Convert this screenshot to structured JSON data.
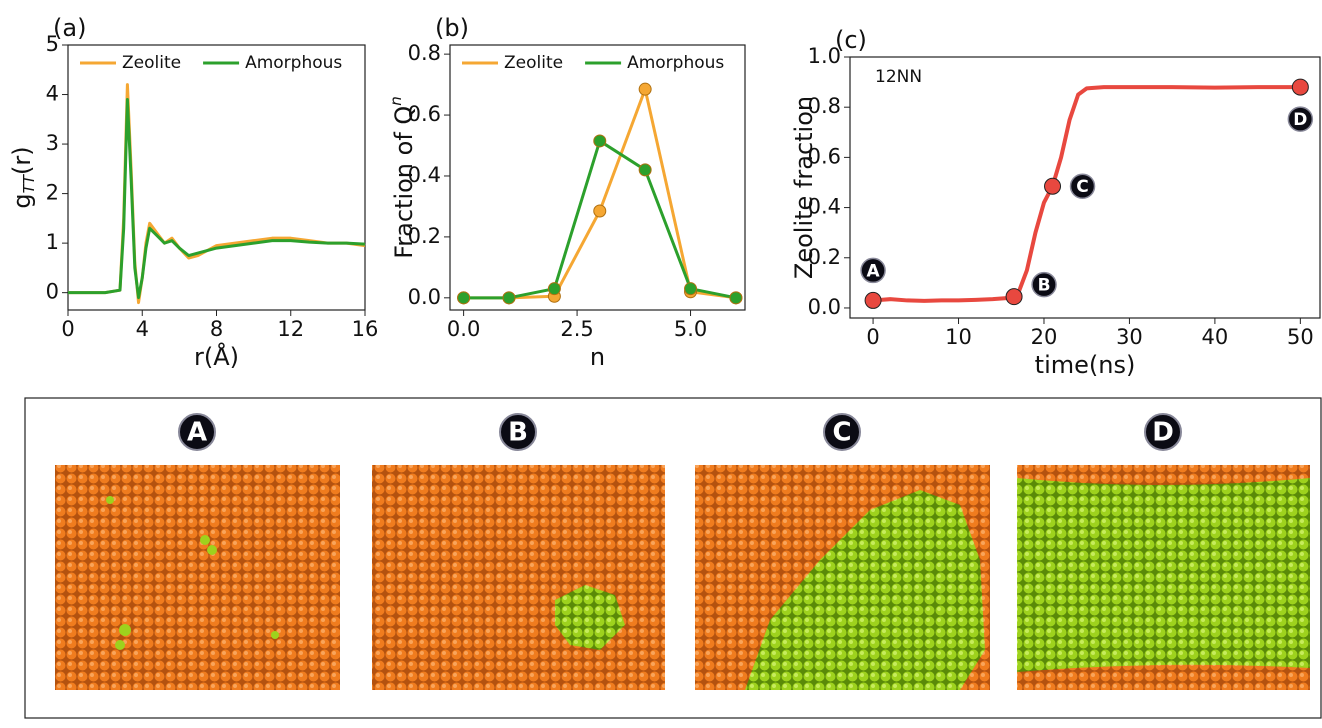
{
  "chart_data": [
    {
      "type": "line",
      "panel_label": "(a)",
      "xlabel": "r(Å)",
      "ylabel": "g",
      "ylabel_sub": "TT",
      "ylabel_end": "(r)",
      "x": [
        0,
        1,
        2,
        2.8,
        3.0,
        3.2,
        3.4,
        3.6,
        3.8,
        4.0,
        4.2,
        4.4,
        4.8,
        5.2,
        5.6,
        6,
        6.5,
        7,
        7.5,
        8,
        9,
        10,
        11,
        12,
        13,
        14,
        15,
        16
      ],
      "series": [
        {
          "name": "Zeolite",
          "color": "#f5a733",
          "values": [
            0,
            0,
            0,
            0.05,
            1.5,
            4.2,
            2.5,
            0.6,
            -0.2,
            0.3,
            1.0,
            1.4,
            1.2,
            1.0,
            1.1,
            0.9,
            0.7,
            0.75,
            0.85,
            0.95,
            1.0,
            1.05,
            1.1,
            1.1,
            1.05,
            1.0,
            1.0,
            0.95
          ]
        },
        {
          "name": "Amorphous",
          "color": "#2ca02c",
          "values": [
            0,
            0,
            0,
            0.05,
            1.3,
            3.9,
            2.3,
            0.5,
            -0.1,
            0.3,
            0.9,
            1.3,
            1.15,
            1.0,
            1.05,
            0.9,
            0.75,
            0.8,
            0.85,
            0.9,
            0.95,
            1.0,
            1.05,
            1.05,
            1.02,
            1.0,
            1.0,
            0.98
          ]
        }
      ],
      "xlim": [
        0,
        16
      ],
      "xticks": [
        0,
        4,
        8,
        12,
        16
      ],
      "ylim": [
        -0.35,
        5
      ],
      "yticks": [
        0,
        1,
        2,
        3,
        4,
        5
      ],
      "legend": "top"
    },
    {
      "type": "line",
      "panel_label": "(b)",
      "xlabel": "n",
      "ylabel": "Fraction of Q",
      "ylabel_sup": "n",
      "x": [
        0,
        1,
        2,
        3,
        4,
        5,
        6
      ],
      "markers": true,
      "series": [
        {
          "name": "Zeolite",
          "color": "#f5a733",
          "values": [
            0,
            0,
            0.005,
            0.285,
            0.685,
            0.02,
            0
          ]
        },
        {
          "name": "Amorphous",
          "color": "#2ca02c",
          "values": [
            0,
            0,
            0.03,
            0.515,
            0.42,
            0.03,
            0
          ]
        }
      ],
      "xlim": [
        -0.3,
        6.2
      ],
      "xticks": [
        {
          "value": 0,
          "label": "0.0"
        },
        {
          "value": 2.5,
          "label": "2.5"
        },
        {
          "value": 5,
          "label": "5.0"
        }
      ],
      "ylim": [
        -0.04,
        0.83
      ],
      "yticks": [
        {
          "value": 0,
          "label": "0.0"
        },
        0.2,
        0.4,
        0.6,
        0.8
      ],
      "legend": "top"
    },
    {
      "type": "line",
      "panel_label": "(c)",
      "xlabel": "time(ns)",
      "ylabel": "Zeolite fraction",
      "annotation": "12NN",
      "series": [
        {
          "color": "#e8483f",
          "x": [
            0,
            2,
            4,
            6,
            8,
            10,
            12,
            14,
            16,
            17,
            18,
            19,
            20,
            21,
            22,
            23,
            24,
            25,
            27,
            30,
            35,
            40,
            45,
            50
          ],
          "values": [
            0.03,
            0.035,
            0.03,
            0.028,
            0.03,
            0.03,
            0.032,
            0.035,
            0.04,
            0.06,
            0.15,
            0.3,
            0.42,
            0.485,
            0.6,
            0.75,
            0.85,
            0.875,
            0.88,
            0.88,
            0.88,
            0.878,
            0.88,
            0.88
          ]
        },
        {
          "color": "#e8483f",
          "markers_only": true,
          "x": [
            0,
            16.5,
            21,
            50
          ],
          "values": [
            0.03,
            0.045,
            0.485,
            0.88
          ],
          "point_labels": [
            "A",
            "B",
            "C",
            "D"
          ]
        }
      ],
      "xlim": [
        -2.7,
        52.3
      ],
      "xticks": [
        0,
        10,
        20,
        30,
        40,
        50
      ],
      "ylim": [
        -0.04,
        1.0
      ],
      "yticks": [
        {
          "value": 0,
          "label": "0.0"
        },
        0.2,
        0.4,
        0.6,
        0.8,
        {
          "value": 1,
          "label": "1.0"
        }
      ]
    }
  ],
  "snapshots": {
    "labels": [
      "A",
      "B",
      "C",
      "D"
    ]
  }
}
